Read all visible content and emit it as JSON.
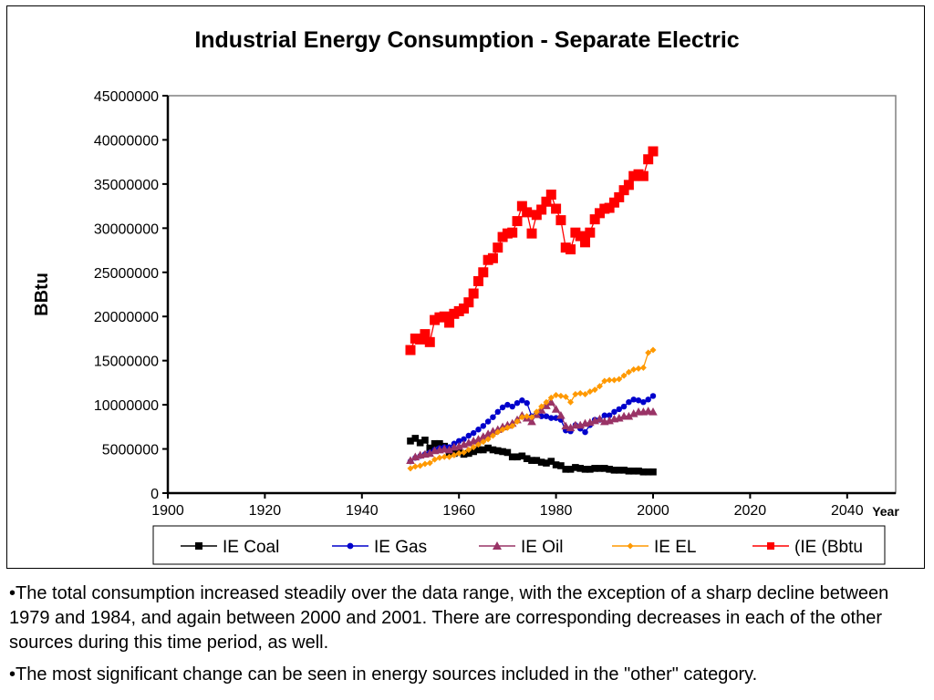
{
  "chart_data": {
    "type": "line",
    "title": "Industrial Energy Consumption - Separate Electric",
    "xlabel": "Year",
    "ylabel": "BBtu",
    "xlim": [
      1900,
      2050
    ],
    "ylim": [
      0,
      45000000
    ],
    "x_ticks": [
      "1900",
      "1920",
      "1940",
      "1960",
      "1980",
      "2000",
      "2020",
      "2040"
    ],
    "y_ticks": [
      "0",
      "5000000",
      "10000000",
      "15000000",
      "20000000",
      "25000000",
      "30000000",
      "35000000",
      "40000000",
      "45000000"
    ],
    "grid": false,
    "legend_position": "bottom",
    "x": [
      1950,
      1951,
      1952,
      1953,
      1954,
      1955,
      1956,
      1957,
      1958,
      1959,
      1960,
      1961,
      1962,
      1963,
      1964,
      1965,
      1966,
      1967,
      1968,
      1969,
      1970,
      1971,
      1972,
      1973,
      1974,
      1975,
      1976,
      1977,
      1978,
      1979,
      1980,
      1981,
      1982,
      1983,
      1984,
      1985,
      1986,
      1987,
      1988,
      1989,
      1990,
      1991,
      1992,
      1993,
      1994,
      1995,
      1996,
      1997,
      1998,
      1999,
      2000
    ],
    "series": [
      {
        "name": "IE Coal",
        "color": "#000000",
        "marker": "square",
        "values": [
          5900000,
          6200000,
          5700000,
          6000000,
          5100000,
          5600000,
          5600000,
          5300000,
          4600000,
          4500000,
          4700000,
          4400000,
          4500000,
          4700000,
          4900000,
          4900000,
          5100000,
          4900000,
          4800000,
          4700000,
          4600000,
          4100000,
          4100000,
          4200000,
          3900000,
          3700000,
          3700000,
          3500000,
          3400000,
          3600000,
          3200000,
          3100000,
          2700000,
          2700000,
          2900000,
          2800000,
          2700000,
          2700000,
          2800000,
          2800000,
          2800000,
          2700000,
          2600000,
          2600000,
          2600000,
          2500000,
          2500000,
          2500000,
          2400000,
          2400000,
          2400000
        ]
      },
      {
        "name": "IE Gas",
        "color": "#0000cc",
        "marker": "circle",
        "values": [
          3600000,
          4000000,
          4200000,
          4400000,
          4600000,
          4900000,
          5100000,
          5200000,
          5200000,
          5600000,
          5900000,
          6100000,
          6500000,
          6800000,
          7200000,
          7600000,
          8100000,
          8600000,
          9200000,
          9700000,
          10000000,
          9800000,
          10200000,
          10500000,
          10200000,
          8700000,
          9000000,
          8700000,
          8700000,
          8500000,
          8500000,
          8300000,
          7100000,
          7000000,
          7700000,
          7300000,
          6900000,
          7700000,
          8300000,
          8300000,
          8800000,
          8800000,
          9200000,
          9500000,
          9800000,
          10300000,
          10600000,
          10500000,
          10300000,
          10600000,
          11000000
        ]
      },
      {
        "name": "IE Oil",
        "color": "#993366",
        "marker": "triangle",
        "values": [
          3700000,
          4100000,
          4300000,
          4400000,
          4500000,
          4800000,
          4900000,
          5000000,
          4900000,
          5200000,
          5300000,
          5500000,
          5700000,
          5900000,
          6100000,
          6400000,
          6700000,
          7000000,
          7200000,
          7500000,
          7700000,
          7900000,
          8300000,
          8800000,
          8500000,
          8100000,
          8900000,
          9400000,
          9900000,
          10300000,
          9500000,
          8800000,
          7600000,
          7400000,
          7700000,
          7700000,
          7900000,
          8000000,
          8200000,
          8400000,
          8100000,
          8200000,
          8400000,
          8500000,
          8700000,
          8700000,
          9000000,
          9200000,
          9200000,
          9300000,
          9200000
        ]
      },
      {
        "name": "IE EL",
        "color": "#ff9900",
        "marker": "diamond",
        "values": [
          2800000,
          3000000,
          3100000,
          3300000,
          3400000,
          3800000,
          4000000,
          4100000,
          4100000,
          4300000,
          4500000,
          4600000,
          4900000,
          5200000,
          5500000,
          5800000,
          6100000,
          6500000,
          6900000,
          7200000,
          7400000,
          7600000,
          8100000,
          8600000,
          8700000,
          8600000,
          9200000,
          9800000,
          10300000,
          10800000,
          11100000,
          11000000,
          10900000,
          10300000,
          11200000,
          11300000,
          11200000,
          11500000,
          11700000,
          12100000,
          12700000,
          12800000,
          12800000,
          12900000,
          13300000,
          13700000,
          14000000,
          14100000,
          14200000,
          15900000,
          16200000
        ]
      },
      {
        "name": "(IE (Bbtu",
        "color": "#ff0000",
        "marker": "square",
        "values": [
          16200000,
          17500000,
          17400000,
          18000000,
          17100000,
          19600000,
          19900000,
          20000000,
          19300000,
          20300000,
          20600000,
          20900000,
          21600000,
          22600000,
          24000000,
          25000000,
          26400000,
          26600000,
          27800000,
          29000000,
          29400000,
          29500000,
          30800000,
          32500000,
          31800000,
          29400000,
          31500000,
          32100000,
          33000000,
          33800000,
          32200000,
          30900000,
          27800000,
          27600000,
          29500000,
          29100000,
          28400000,
          29500000,
          31000000,
          31700000,
          32200000,
          32300000,
          32900000,
          33500000,
          34300000,
          34900000,
          35900000,
          36100000,
          35900000,
          37800000,
          38700000
        ]
      }
    ]
  },
  "notes": [
    "•The total consumption increased steadily over the data range, with the exception of a sharp decline between 1979 and 1984, and again between 2000 and 2001. There are corresponding decreases in each of the other sources during this time period, as well.",
    "•The most significant change can be seen in energy sources included in the \"other\" category."
  ]
}
